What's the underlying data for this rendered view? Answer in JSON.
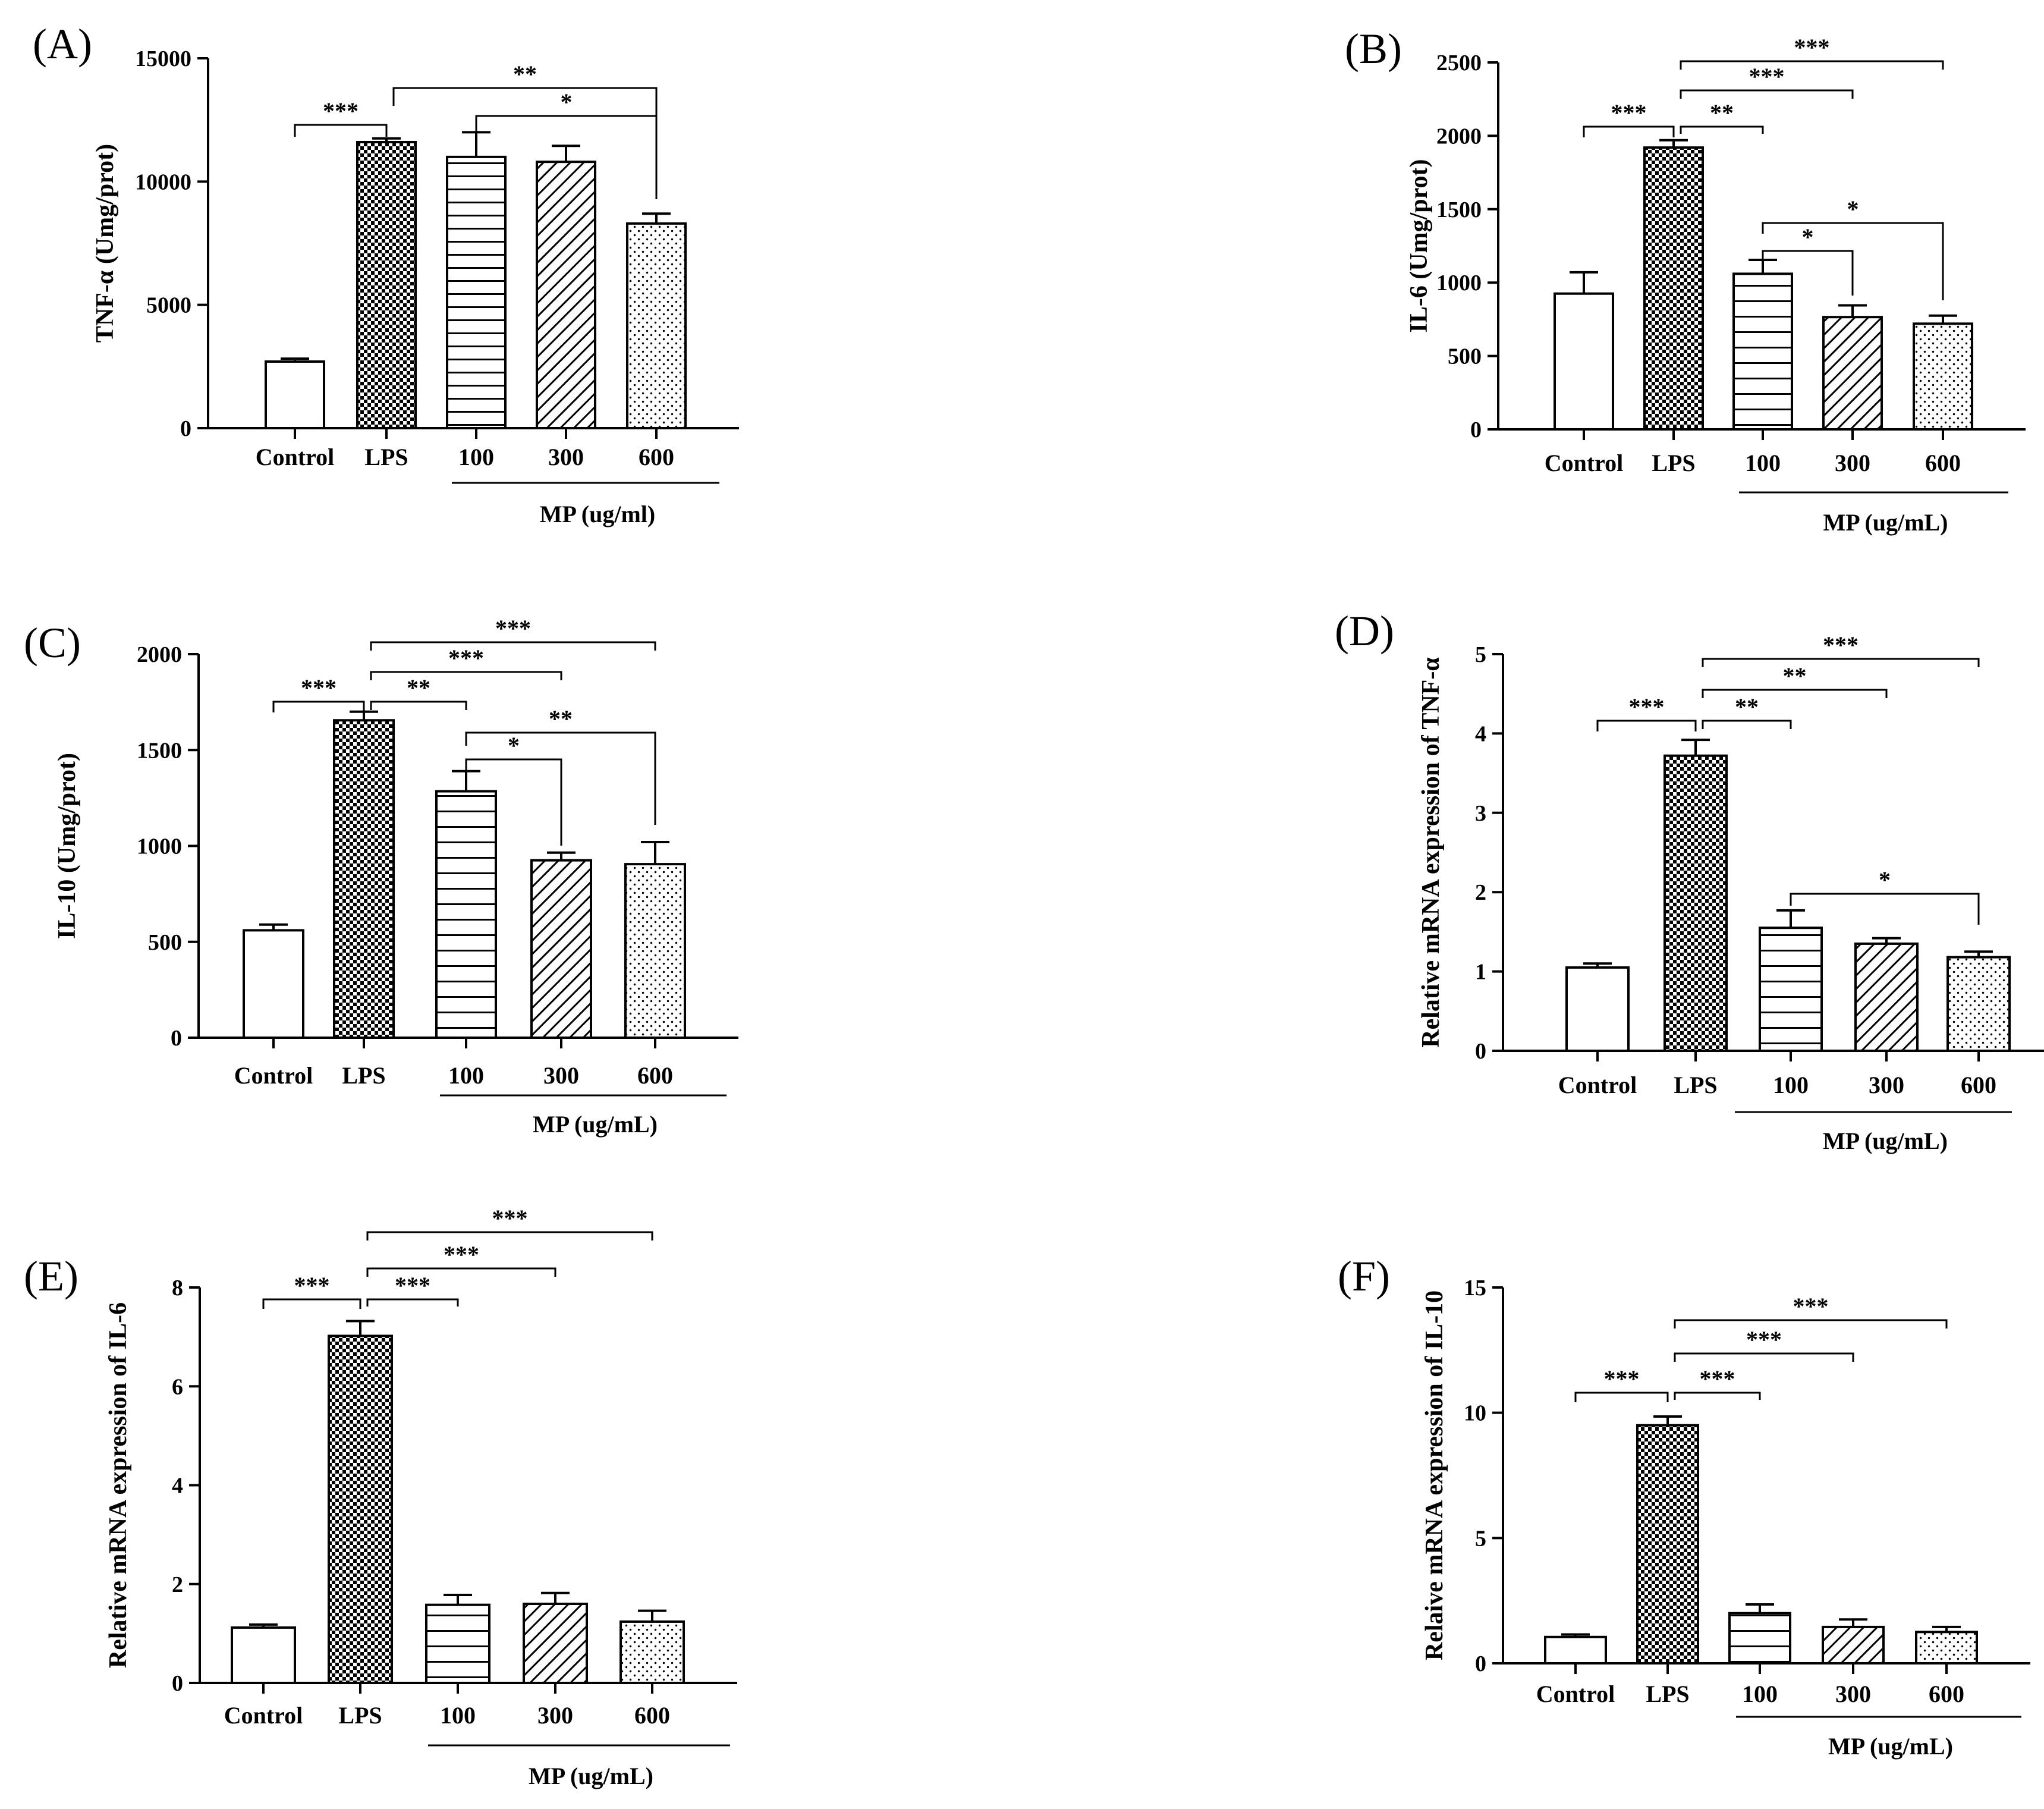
{
  "chart_data": [
    {
      "panel": "(A)",
      "type": "bar",
      "categories": [
        "Control",
        "LPS",
        "100",
        "300",
        "600"
      ],
      "values": [
        2700,
        11600,
        11000,
        10800,
        8300
      ],
      "errors": [
        120,
        150,
        1000,
        650,
        400
      ],
      "ylabel": "TNF-α (Umg/prot)",
      "ylim": [
        0,
        15000
      ],
      "yticks": [
        0,
        5000,
        10000,
        15000
      ],
      "group_label": "MP (ug/ml)",
      "patterns": [
        "empty",
        "check",
        "hlines-sparse",
        "diag",
        "dots"
      ],
      "comparisons": [
        {
          "from": 0,
          "to": 1,
          "label": "***"
        },
        {
          "from": 2,
          "to": 4,
          "label": "*"
        },
        {
          "from": 1,
          "to": 4,
          "label": "**"
        }
      ]
    },
    {
      "panel": "(B)",
      "type": "bar",
      "categories": [
        "Control",
        "LPS",
        "100",
        "300",
        "600"
      ],
      "values": [
        925,
        1920,
        1060,
        765,
        720
      ],
      "errors": [
        145,
        50,
        95,
        80,
        55
      ],
      "ylabel": "IL-6 (Umg/prot)",
      "ylim": [
        0,
        2500
      ],
      "yticks": [
        0,
        500,
        1000,
        1500,
        2000,
        2500
      ],
      "group_label": "MP (ug/mL)",
      "patterns": [
        "empty",
        "check",
        "hlines",
        "diag",
        "dots"
      ],
      "comparisons": [
        {
          "from": 0,
          "to": 1,
          "label": "***"
        },
        {
          "from": 1,
          "to": 2,
          "label": "**"
        },
        {
          "from": 1,
          "to": 3,
          "label": "***"
        },
        {
          "from": 1,
          "to": 4,
          "label": "***"
        },
        {
          "from": 2,
          "to": 3,
          "label": "*"
        },
        {
          "from": 2,
          "to": 4,
          "label": "*"
        }
      ]
    },
    {
      "panel": "(C)",
      "type": "bar",
      "categories": [
        "Control",
        "LPS",
        "100",
        "300",
        "600"
      ],
      "values": [
        560,
        1655,
        1285,
        925,
        905
      ],
      "errors": [
        30,
        45,
        105,
        40,
        115
      ],
      "ylabel": "IL-10 (Umg/prot)",
      "ylim": [
        0,
        2000
      ],
      "yticks": [
        0,
        500,
        1000,
        1500,
        2000
      ],
      "group_label": "MP (ug/mL)",
      "patterns": [
        "empty",
        "check",
        "hlines",
        "diag",
        "dots"
      ],
      "comparisons": [
        {
          "from": 0,
          "to": 1,
          "label": "***"
        },
        {
          "from": 1,
          "to": 2,
          "label": "**"
        },
        {
          "from": 1,
          "to": 3,
          "label": "***"
        },
        {
          "from": 1,
          "to": 4,
          "label": "***"
        },
        {
          "from": 2,
          "to": 3,
          "label": "*"
        },
        {
          "from": 2,
          "to": 4,
          "label": "**"
        }
      ]
    },
    {
      "panel": "(D)",
      "type": "bar",
      "categories": [
        "Control",
        "LPS",
        "100",
        "300",
        "600"
      ],
      "values": [
        1.05,
        3.72,
        1.55,
        1.35,
        1.18
      ],
      "errors": [
        0.05,
        0.2,
        0.22,
        0.07,
        0.07
      ],
      "ylabel": "Relative mRNA expression of TNF-α",
      "ylim": [
        0,
        5
      ],
      "yticks": [
        0,
        1,
        2,
        3,
        4,
        5
      ],
      "group_label": "MP (ug/mL)",
      "patterns": [
        "empty",
        "check",
        "hlines",
        "diag",
        "dots"
      ],
      "comparisons": [
        {
          "from": 0,
          "to": 1,
          "label": "***"
        },
        {
          "from": 1,
          "to": 2,
          "label": "**"
        },
        {
          "from": 1,
          "to": 3,
          "label": "**"
        },
        {
          "from": 1,
          "to": 4,
          "label": "***"
        },
        {
          "from": 2,
          "to": 4,
          "label": "*"
        }
      ]
    },
    {
      "panel": "(E)",
      "type": "bar",
      "categories": [
        "Control",
        "LPS",
        "100",
        "300",
        "600"
      ],
      "values": [
        1.12,
        7.02,
        1.58,
        1.6,
        1.24
      ],
      "errors": [
        0.06,
        0.3,
        0.2,
        0.22,
        0.22
      ],
      "ylabel": "Relative mRNA expression of IL-6",
      "ylim": [
        0,
        8
      ],
      "yticks": [
        0,
        2,
        4,
        6,
        8
      ],
      "group_label": "MP (ug/mL)",
      "patterns": [
        "empty",
        "check",
        "hlines",
        "diag",
        "dots"
      ],
      "comparisons": [
        {
          "from": 0,
          "to": 1,
          "label": "***"
        },
        {
          "from": 1,
          "to": 2,
          "label": "***"
        },
        {
          "from": 1,
          "to": 3,
          "label": "***"
        },
        {
          "from": 1,
          "to": 4,
          "label": "***"
        }
      ]
    },
    {
      "panel": "(F)",
      "type": "bar",
      "categories": [
        "Control",
        "LPS",
        "100",
        "300",
        "600"
      ],
      "values": [
        1.05,
        9.5,
        2.0,
        1.45,
        1.25
      ],
      "errors": [
        0.1,
        0.35,
        0.35,
        0.3,
        0.2
      ],
      "ylabel": "Relaive mRNA expression of IL-10",
      "ylim": [
        0,
        15
      ],
      "yticks": [
        0,
        5,
        10,
        15
      ],
      "group_label": "MP (ug/mL)",
      "patterns": [
        "empty",
        "check",
        "hlines",
        "diag",
        "dots"
      ],
      "comparisons": [
        {
          "from": 0,
          "to": 1,
          "label": "***"
        },
        {
          "from": 1,
          "to": 2,
          "label": "***"
        },
        {
          "from": 1,
          "to": 3,
          "label": "***"
        },
        {
          "from": 1,
          "to": 4,
          "label": "***"
        }
      ]
    }
  ]
}
